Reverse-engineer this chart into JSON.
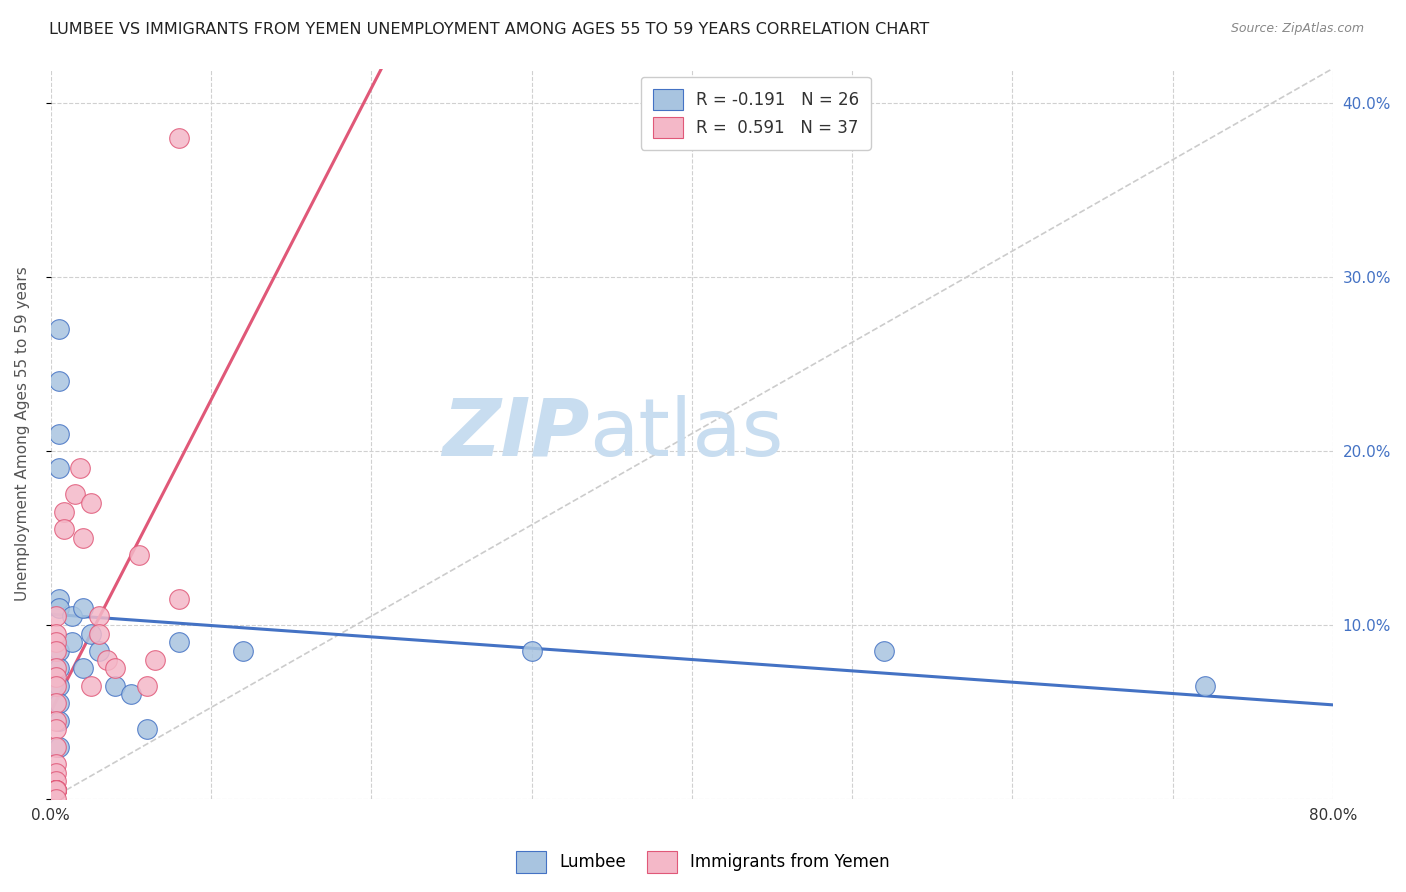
{
  "title": "LUMBEE VS IMMIGRANTS FROM YEMEN UNEMPLOYMENT AMONG AGES 55 TO 59 YEARS CORRELATION CHART",
  "source": "Source: ZipAtlas.com",
  "ylabel": "Unemployment Among Ages 55 to 59 years",
  "legend_lumbee_label": "Lumbee",
  "legend_yemen_label": "Immigrants from Yemen",
  "lumbee_R": -0.191,
  "lumbee_N": 26,
  "yemen_R": 0.591,
  "yemen_N": 37,
  "xlim": [
    0.0,
    0.8
  ],
  "ylim": [
    0.0,
    0.42
  ],
  "xticks": [
    0.0,
    0.1,
    0.2,
    0.3,
    0.4,
    0.5,
    0.6,
    0.7,
    0.8
  ],
  "yticks": [
    0.0,
    0.1,
    0.2,
    0.3,
    0.4
  ],
  "ytick_labels_right": [
    "",
    "10.0%",
    "20.0%",
    "30.0%",
    "40.0%"
  ],
  "xtick_labels": [
    "0.0%",
    "",
    "",
    "",
    "",
    "",
    "",
    "",
    "80.0%"
  ],
  "lumbee_color": "#a8c4e0",
  "lumbee_line_color": "#4472c4",
  "yemen_color": "#f4b8c8",
  "yemen_line_color": "#e05878",
  "diagonal_color": "#cccccc",
  "background_color": "#ffffff",
  "watermark_zip": "ZIP",
  "watermark_atlas": "atlas",
  "watermark_color_zip": "#c8ddf0",
  "watermark_color_atlas": "#c8ddf0",
  "lumbee_x": [
    0.005,
    0.005,
    0.005,
    0.005,
    0.005,
    0.005,
    0.005,
    0.005,
    0.005,
    0.005,
    0.005,
    0.005,
    0.013,
    0.013,
    0.02,
    0.02,
    0.025,
    0.03,
    0.04,
    0.05,
    0.06,
    0.08,
    0.12,
    0.3,
    0.52,
    0.72
  ],
  "lumbee_y": [
    0.27,
    0.24,
    0.21,
    0.19,
    0.115,
    0.11,
    0.085,
    0.075,
    0.065,
    0.055,
    0.045,
    0.03,
    0.105,
    0.09,
    0.11,
    0.075,
    0.095,
    0.085,
    0.065,
    0.06,
    0.04,
    0.09,
    0.085,
    0.085,
    0.085,
    0.065
  ],
  "yemen_x": [
    0.003,
    0.003,
    0.003,
    0.003,
    0.003,
    0.003,
    0.003,
    0.003,
    0.003,
    0.003,
    0.003,
    0.003,
    0.003,
    0.003,
    0.003,
    0.003,
    0.003,
    0.003,
    0.003,
    0.003,
    0.003,
    0.008,
    0.008,
    0.015,
    0.018,
    0.02,
    0.025,
    0.025,
    0.03,
    0.03,
    0.035,
    0.04,
    0.055,
    0.06,
    0.065,
    0.08,
    0.08
  ],
  "yemen_y": [
    0.105,
    0.095,
    0.09,
    0.085,
    0.075,
    0.07,
    0.065,
    0.055,
    0.045,
    0.04,
    0.03,
    0.02,
    0.015,
    0.01,
    0.005,
    0.005,
    0.005,
    0.005,
    0.005,
    0.005,
    0.0,
    0.165,
    0.155,
    0.175,
    0.19,
    0.15,
    0.17,
    0.065,
    0.105,
    0.095,
    0.08,
    0.075,
    0.14,
    0.065,
    0.08,
    0.115,
    0.38
  ]
}
